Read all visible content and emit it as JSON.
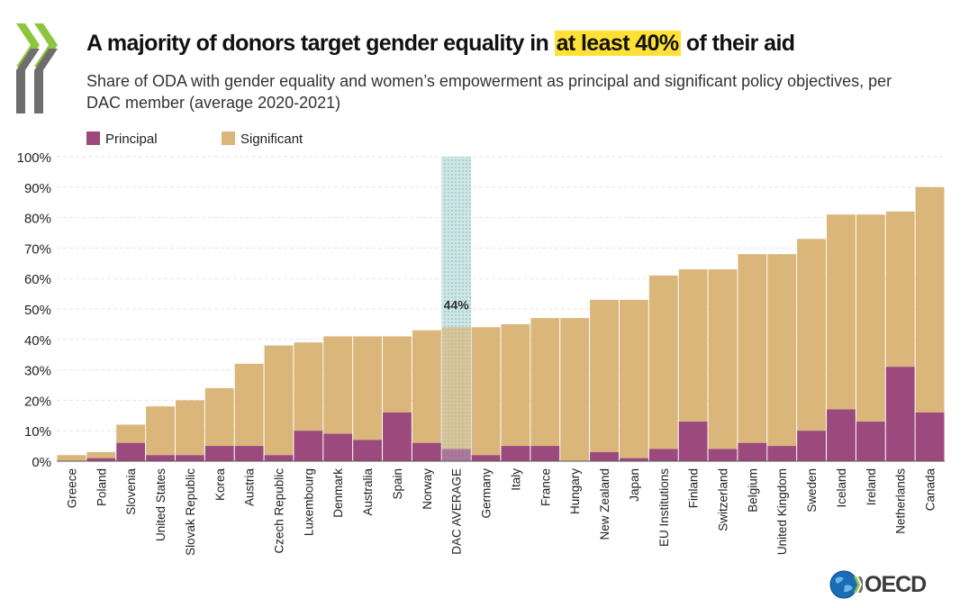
{
  "header": {
    "title_pre": "A majority of donors target gender equality in",
    "title_highlight": "at least 40%",
    "title_post": "of their aid",
    "subtitle": "Share of ODA with gender equality and women’s empowerment as principal and significant policy objectives, per DAC member (average 2020-2021)"
  },
  "logo": {
    "text": "OECD",
    "icon": "globe-icon"
  },
  "colors": {
    "principal": "#9c4a7e",
    "significant": "#dab67b",
    "highlight": "#ffe034",
    "average_band": "#a8cfd0",
    "gridline": "#e3e3e3"
  },
  "chart_data": {
    "type": "bar",
    "stacked": true,
    "title": "A majority of donors target gender equality in at least 40% of their aid",
    "ylim": [
      0,
      100
    ],
    "yticks": [
      "0%",
      "10%",
      "20%",
      "30%",
      "40%",
      "50%",
      "60%",
      "70%",
      "80%",
      "90%",
      "100%"
    ],
    "legend": [
      {
        "name": "Principal",
        "color_key": "principal"
      },
      {
        "name": "Significant",
        "color_key": "significant"
      }
    ],
    "highlight_category": "DAC AVERAGE",
    "highlight_label": "44%",
    "categories": [
      "Greece",
      "Poland",
      "Slovenia",
      "United States",
      "Slovak Republic",
      "Korea",
      "Austria",
      "Czech Republic",
      "Luxembourg",
      "Denmark",
      "Australia",
      "Spain",
      "Norway",
      "DAC AVERAGE",
      "Germany",
      "Italy",
      "France",
      "Hungary",
      "New Zealand",
      "Japan",
      "EU Institutions",
      "Finland",
      "Switzerland",
      "Belgium",
      "United Kingdom",
      "Sweden",
      "Iceland",
      "Ireland",
      "Netherlands",
      "Canada"
    ],
    "series": [
      {
        "name": "Principal",
        "values": [
          0,
          1,
          6,
          2,
          2,
          5,
          5,
          2,
          10,
          9,
          7,
          16,
          6,
          4,
          2,
          5,
          5,
          0,
          3,
          1,
          4,
          13,
          4,
          6,
          5,
          10,
          17,
          13,
          31,
          16
        ]
      },
      {
        "name": "Significant",
        "values": [
          2,
          2,
          6,
          16,
          18,
          19,
          27,
          36,
          29,
          32,
          34,
          25,
          37,
          40,
          42,
          40,
          42,
          47,
          50,
          52,
          57,
          50,
          59,
          62,
          63,
          63,
          64,
          68,
          51,
          74
        ]
      }
    ]
  }
}
